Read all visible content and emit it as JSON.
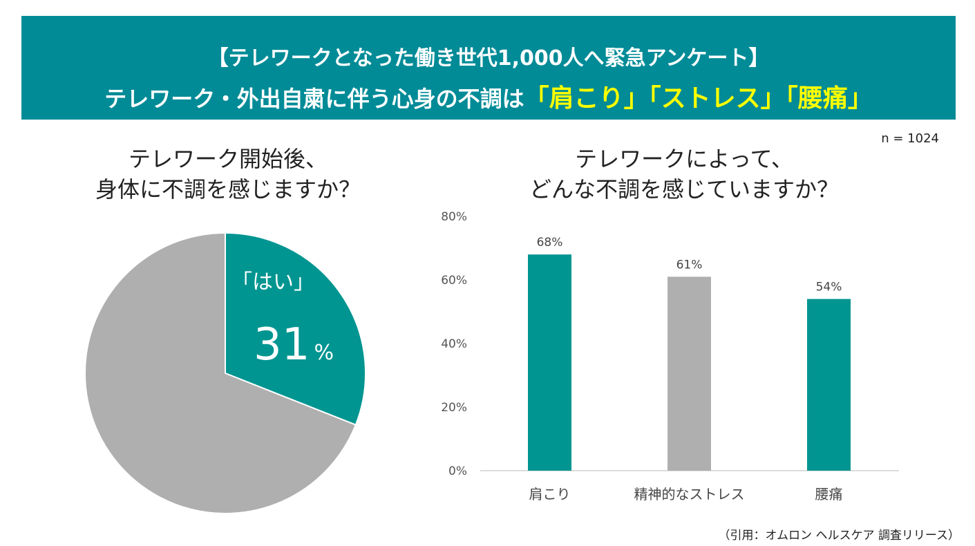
{
  "header": {
    "line1": "【テレワークとなった働き世代1,000人へ緊急アンケート】",
    "line2_prefix": "テレワーク・外出自粛に伴う心身の不調は",
    "highlights": [
      "「肩こり」",
      "「ストレス」",
      "「腰痛」"
    ]
  },
  "sample_size": "n = 1024",
  "source": "（引用：オムロン ヘルスケア 調査リリース）",
  "colors": {
    "teal": "#009591",
    "gray": "#afafaf",
    "banner": "#008b97",
    "highlight": "#ffff00"
  },
  "chart_data": [
    {
      "type": "pie",
      "title": [
        "テレワーク開始後、",
        "身体に不調を感じますか？"
      ],
      "slices": [
        {
          "label": "「はい」",
          "value": 31,
          "value_label": "31",
          "unit": "%",
          "color": "#009591"
        },
        {
          "value": 69,
          "color": "#afafaf"
        }
      ]
    },
    {
      "type": "bar",
      "title": [
        "テレワークによって、",
        "どんな不調を感じていますか？"
      ],
      "categories": [
        "肩こり",
        "精神的なストレス",
        "腰痛"
      ],
      "values": [
        68,
        61,
        54
      ],
      "data_labels": [
        "68%",
        "61%",
        "54%"
      ],
      "colors": [
        "#009591",
        "#afafaf",
        "#009591"
      ],
      "ylim": [
        0,
        80
      ],
      "yticks": [
        "0%",
        "20%",
        "40%",
        "60%",
        "80%"
      ],
      "grid": false
    }
  ]
}
